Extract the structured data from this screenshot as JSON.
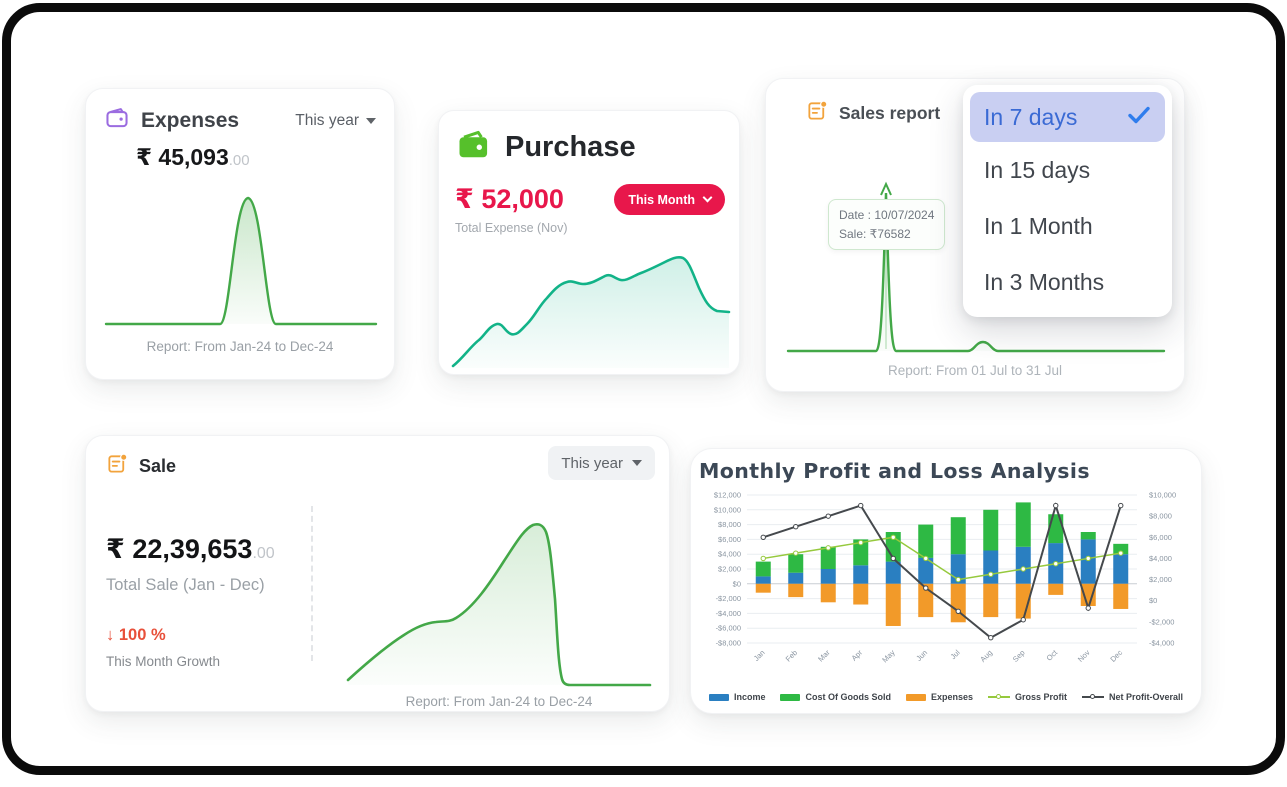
{
  "cards": {
    "expenses": {
      "title": "Expenses",
      "period": "This year",
      "currency": "₹",
      "amount": "45,093",
      "decimals": ".00",
      "report": "Report: From Jan-24 to Dec-24"
    },
    "purchase": {
      "title": "Purchase",
      "currency": "₹",
      "amount": "52,000",
      "period_button": "This Month",
      "subtitle": "Total Expense (Nov)"
    },
    "sales_report": {
      "title": "Sales report",
      "tooltip": {
        "date": "Date : 10/07/2024",
        "sale": "Sale: ₹76582"
      },
      "report": "Report: From 01 Jul to 31 Jul",
      "menu_items": [
        {
          "label": "In 7 days",
          "selected": true
        },
        {
          "label": "In 15 days",
          "selected": false
        },
        {
          "label": "In 1 Month",
          "selected": false
        },
        {
          "label": "In 3 Months",
          "selected": false
        }
      ]
    },
    "sale": {
      "title": "Sale",
      "period": "This year",
      "currency": "₹",
      "amount": "22,39,653",
      "decimals": ".00",
      "subtitle": "Total Sale (Jan - Dec)",
      "growth_arrow": "↓",
      "growth_value": "100 %",
      "growth_label": "This Month Growth",
      "report": "Report: From Jan-24 to Dec-24"
    }
  },
  "colors": {
    "accent_red": "#e8174b",
    "growth_red": "#e8503a",
    "expenses_purple": "#9b6ce0",
    "purchase_green": "#56c02b",
    "report_orange": "#f2a33c",
    "spark_green": "#43a848",
    "purchase_line_teal": "#12b388",
    "menu_selected_bg": "#c9cff2",
    "menu_selected_text": "#3a6ad4",
    "check_blue": "#2f7ded"
  },
  "chart_data": {
    "type": "bar",
    "subtype": "stacked-bar-with-lines-combo",
    "title": "Monthly Profit and Loss Analysis",
    "categories": [
      "Jan",
      "Feb",
      "Mar",
      "Apr",
      "May",
      "Jun",
      "Jul",
      "Aug",
      "Sep",
      "Oct",
      "Nov",
      "Dec"
    ],
    "series": [
      {
        "name": "Income",
        "type": "bar",
        "axis": "left",
        "color": "#2a7fc1",
        "values": [
          1000,
          1500,
          2000,
          2500,
          3000,
          3500,
          4000,
          4500,
          5000,
          5500,
          6000,
          4000
        ]
      },
      {
        "name": "Cost Of Goods Sold",
        "type": "bar",
        "axis": "left",
        "color": "#2eb944",
        "values": [
          2000,
          2500,
          3000,
          3500,
          4000,
          4500,
          5000,
          5500,
          6000,
          3900,
          1000,
          1400
        ]
      },
      {
        "name": "Expenses",
        "type": "bar",
        "axis": "left",
        "color": "#f29a29",
        "values": [
          -1200,
          -1800,
          -2500,
          -2800,
          -5700,
          -4500,
          -5200,
          -4500,
          -4700,
          -1500,
          -3000,
          -3400
        ]
      },
      {
        "name": "Gross Profit",
        "type": "line",
        "axis": "right",
        "color": "#96c93d",
        "values": [
          4000,
          4500,
          5000,
          5500,
          6000,
          4000,
          2000,
          2500,
          3000,
          3500,
          4000,
          4500
        ]
      },
      {
        "name": "Net Profit-Overall",
        "type": "line",
        "axis": "right",
        "color": "#45494d",
        "values": [
          6000,
          7000,
          8000,
          9000,
          4000,
          1200,
          -1000,
          -3500,
          -1800,
          9000,
          -700,
          9000
        ]
      }
    ],
    "xlabel": "",
    "ylabel": "",
    "left_axis": {
      "min": -8000,
      "max": 12000,
      "tick_values": [
        12000,
        10000,
        8000,
        6000,
        4000,
        2000,
        0,
        -2000,
        -4000,
        -6000,
        -8000
      ],
      "ticks": [
        "$12,000",
        "$10,000",
        "$8,000",
        "$6,000",
        "$4,000",
        "$2,000",
        "$0",
        "-$2,000",
        "-$4,000",
        "-$6,000",
        "-$8,000"
      ]
    },
    "right_axis": {
      "min": -4000,
      "max": 10000,
      "tick_values": [
        10000,
        8000,
        6000,
        4000,
        2000,
        0,
        -2000,
        -4000
      ],
      "ticks": [
        "$10,000",
        "$8,000",
        "$6,000",
        "$4,000",
        "$2,000",
        "$0",
        "-$2,000",
        "-$4,000"
      ]
    },
    "grid": true,
    "legend_position": "bottom"
  }
}
